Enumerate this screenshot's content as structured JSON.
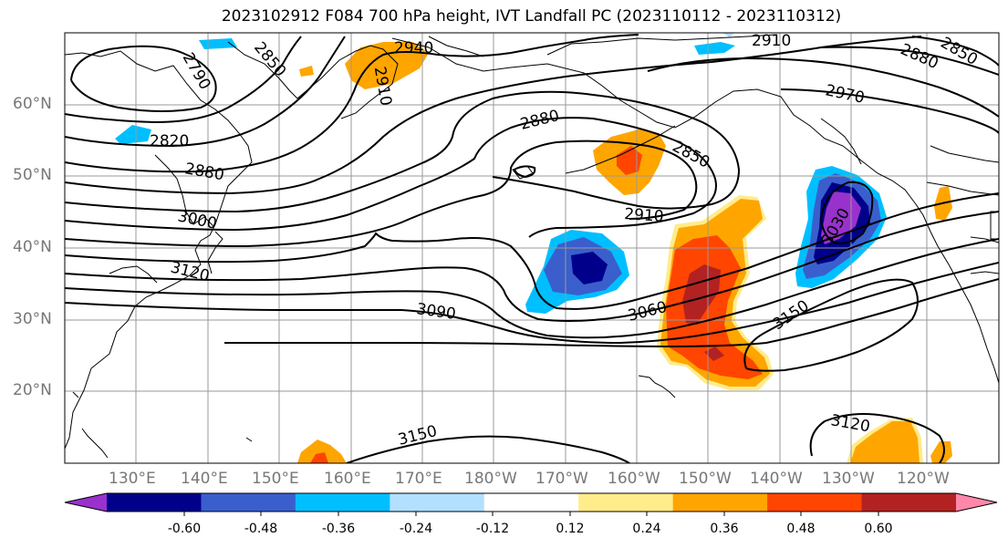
{
  "title": "2023102912 F084 700 hPa height, IVT Landfall PC (2023110112 - 2023110312)",
  "latitude_labels": [
    "60°N",
    "50°N",
    "40°N",
    "30°N",
    "20°N"
  ],
  "longitude_labels": [
    "130°E",
    "140°E",
    "150°E",
    "160°E",
    "170°E",
    "180°W",
    "170°W",
    "160°W",
    "150°W",
    "140°W",
    "130°W",
    "120°W"
  ],
  "contour_labels": [
    "2940",
    "2910",
    "2850",
    "2790",
    "2820",
    "2880",
    "3000",
    "3120",
    "2880",
    "2850",
    "2910",
    "3060",
    "3090",
    "3150",
    "3030",
    "2970",
    "2880",
    "2850",
    "2910",
    "3150",
    "3120"
  ],
  "colorbar": {
    "ticks": [
      "-0.60",
      "-0.48",
      "-0.36",
      "-0.24",
      "-0.12",
      "0.12",
      "0.24",
      "0.36",
      "0.48",
      "0.60"
    ],
    "colors": [
      "#9932cc",
      "#00008b",
      "#3a5fcd",
      "#00bfff",
      "#b3e0ff",
      "#ffffff",
      "#ffec8b",
      "#ffa500",
      "#ff4500",
      "#b22222",
      "#ff88aa"
    ]
  },
  "colors": {
    "frame": "#000000",
    "grid": "#999999",
    "contour": "#000000"
  }
}
